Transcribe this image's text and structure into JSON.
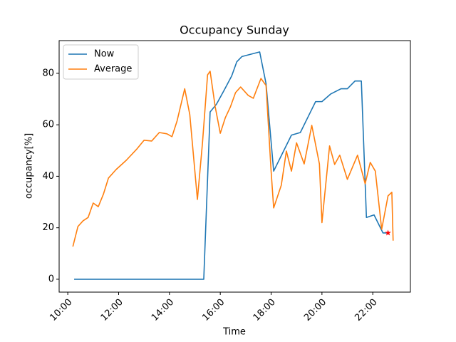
{
  "chart_data": {
    "type": "line",
    "title": "Occupancy Sunday",
    "xlabel": "Time",
    "ylabel": "occupancy[%]",
    "xlim": [
      9.66,
      23.48
    ],
    "ylim": [
      -5,
      92.7
    ],
    "xticks": [
      {
        "value": 10,
        "label": "10:00"
      },
      {
        "value": 12,
        "label": "12:00"
      },
      {
        "value": 14,
        "label": "14:00"
      },
      {
        "value": 16,
        "label": "16:00"
      },
      {
        "value": 18,
        "label": "18:00"
      },
      {
        "value": 20,
        "label": "20:00"
      },
      {
        "value": 22,
        "label": "22:00"
      }
    ],
    "yticks": [
      0,
      20,
      40,
      60,
      80
    ],
    "legend": "upper left",
    "series": [
      {
        "name": "Now",
        "color": "#1f77b4",
        "x": [
          10.25,
          15.35,
          15.6,
          15.85,
          16.15,
          16.45,
          16.65,
          16.85,
          17.55,
          17.8,
          18.1,
          18.45,
          18.8,
          19.15,
          19.55,
          19.75,
          20.0,
          20.35,
          20.75,
          21.0,
          21.3,
          21.55,
          21.75,
          22.05,
          22.4,
          22.6
        ],
        "values": [
          0,
          0,
          65,
          68,
          73.4,
          79,
          84.5,
          86.5,
          88.3,
          76,
          42,
          49,
          56,
          57,
          65,
          69,
          69,
          72,
          74,
          74,
          77,
          77,
          24,
          25,
          18,
          18
        ]
      },
      {
        "name": "Average",
        "color": "#ff7f0e",
        "x": [
          10.2,
          10.4,
          10.6,
          10.8,
          11.0,
          11.2,
          11.4,
          11.6,
          11.9,
          12.3,
          12.7,
          13.0,
          13.3,
          13.6,
          13.9,
          14.1,
          14.3,
          14.6,
          14.8,
          15.1,
          15.3,
          15.5,
          15.6,
          15.8,
          16.0,
          16.2,
          16.4,
          16.6,
          16.8,
          17.1,
          17.3,
          17.6,
          17.8,
          18.0,
          18.1,
          18.4,
          18.6,
          18.8,
          19.0,
          19.3,
          19.6,
          19.9,
          20.0,
          20.3,
          20.5,
          20.7,
          21.0,
          21.4,
          21.7,
          21.9,
          22.1,
          22.35,
          22.6,
          22.75,
          22.8
        ],
        "values": [
          12.7,
          20.5,
          22.7,
          24,
          29.6,
          28.2,
          33,
          39.3,
          42.6,
          46.2,
          50.4,
          54,
          53.7,
          57,
          56.5,
          55.4,
          61.5,
          74,
          64,
          31,
          53,
          79.4,
          80.8,
          67,
          56.7,
          62.8,
          67,
          72.5,
          74.7,
          71.4,
          70.3,
          78,
          75.3,
          42,
          27.7,
          36.5,
          49.8,
          42,
          53,
          44.8,
          59.8,
          44.8,
          22,
          51.8,
          44.6,
          48.2,
          38.8,
          48.2,
          37.1,
          45.4,
          42,
          19.4,
          32.4,
          33.8,
          15
        ]
      }
    ],
    "marker": {
      "x": 22.6,
      "y": 18,
      "color": "red"
    }
  }
}
